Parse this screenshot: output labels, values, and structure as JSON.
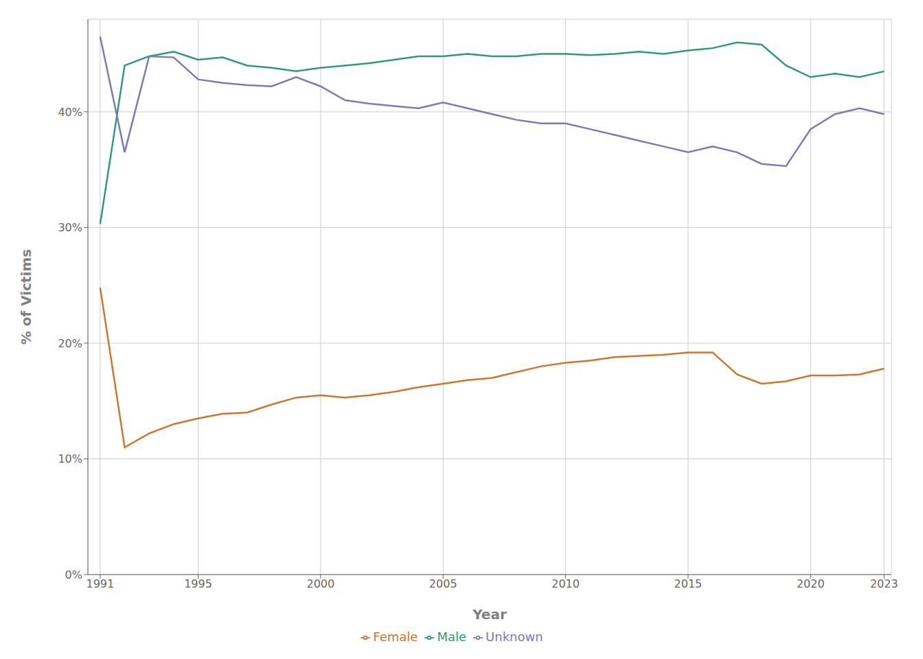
{
  "chart_data": {
    "type": "line",
    "x": [
      1991,
      1992,
      1993,
      1994,
      1995,
      1996,
      1997,
      1998,
      1999,
      2000,
      2001,
      2002,
      2003,
      2004,
      2005,
      2006,
      2007,
      2008,
      2009,
      2010,
      2011,
      2012,
      2013,
      2014,
      2015,
      2016,
      2017,
      2018,
      2019,
      2020,
      2021,
      2022,
      2023
    ],
    "series": [
      {
        "name": "Female",
        "color": "#d4732a",
        "values": [
          24.8,
          11.0,
          12.2,
          13.0,
          13.5,
          13.9,
          14.0,
          14.7,
          15.3,
          15.5,
          15.3,
          15.5,
          15.8,
          16.2,
          16.5,
          16.8,
          17.0,
          17.5,
          18.0,
          18.3,
          18.5,
          18.8,
          18.9,
          19.0,
          19.2,
          19.2,
          17.3,
          16.5,
          16.7,
          17.2,
          17.2,
          17.3,
          17.8
        ]
      },
      {
        "name": "Male",
        "color": "#2a9d74",
        "values": [
          30.3,
          44.0,
          44.8,
          45.2,
          44.5,
          44.7,
          44.0,
          43.8,
          43.5,
          43.8,
          44.0,
          44.2,
          44.5,
          44.8,
          44.8,
          45.0,
          44.8,
          44.8,
          45.0,
          45.0,
          44.9,
          45.0,
          45.2,
          45.0,
          45.3,
          45.5,
          46.0,
          45.8,
          44.0,
          43.0,
          43.3,
          43.0,
          43.5
        ]
      },
      {
        "name": "Unknown",
        "color": "#7b7ab8",
        "values": [
          46.5,
          36.5,
          44.8,
          44.7,
          42.8,
          42.5,
          42.3,
          42.2,
          43.0,
          42.2,
          41.0,
          40.7,
          40.5,
          40.3,
          40.8,
          40.3,
          39.8,
          39.3,
          39.0,
          39.0,
          38.5,
          38.0,
          37.5,
          37.0,
          36.5,
          37.0,
          36.5,
          35.5,
          35.3,
          38.5,
          39.8,
          40.3,
          39.8
        ]
      }
    ],
    "x_label": "Year",
    "y_label": "% of Victims",
    "xlim": [
      1990.5,
      2023.3
    ],
    "xticks": [
      1991,
      1995,
      2000,
      2005,
      2010,
      2015,
      2020,
      2023
    ],
    "ylim": [
      0,
      48
    ],
    "yticks": [
      {
        "value": 0,
        "label": "0%"
      },
      {
        "value": 10,
        "label": "10%"
      },
      {
        "value": 20,
        "label": "20%"
      },
      {
        "value": 30,
        "label": "30%"
      },
      {
        "value": 40,
        "label": "40%"
      }
    ],
    "grid": true,
    "legend": "bottom"
  }
}
